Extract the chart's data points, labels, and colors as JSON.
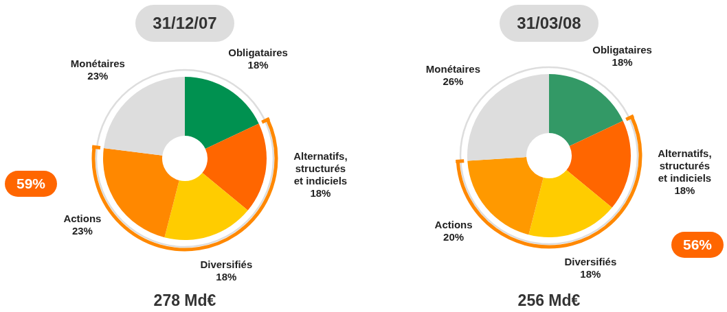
{
  "chart_data": [
    {
      "type": "donut",
      "title": "31/12/07",
      "categories": [
        "Obligataires",
        "Alternatifs, structurés et indiciels",
        "Diversifiés",
        "Actions",
        "Monétaires"
      ],
      "values": [
        18,
        18,
        18,
        23,
        23
      ],
      "value_labels": [
        "18%",
        "18%",
        "18%",
        "23%",
        "23%"
      ],
      "colors": [
        "#009150",
        "#ff6600",
        "#ffcc00",
        "#ff8800",
        "#dddddd"
      ],
      "annotations": [
        "59%",
        "278 Md€"
      ]
    },
    {
      "type": "donut",
      "title": "31/03/08",
      "categories": [
        "Obligataires",
        "Alternatifs, structurés et indiciels",
        "Diversifiés",
        "Actions",
        "Monétaires"
      ],
      "values": [
        18,
        18,
        18,
        20,
        26
      ],
      "value_labels": [
        "18%",
        "18%",
        "18%",
        "20%",
        "26%"
      ],
      "colors": [
        "#339966",
        "#ff6600",
        "#ffcc00",
        "#ff9900",
        "#dddddd"
      ],
      "annotations": [
        "56%",
        "256 Md€"
      ]
    }
  ]
}
